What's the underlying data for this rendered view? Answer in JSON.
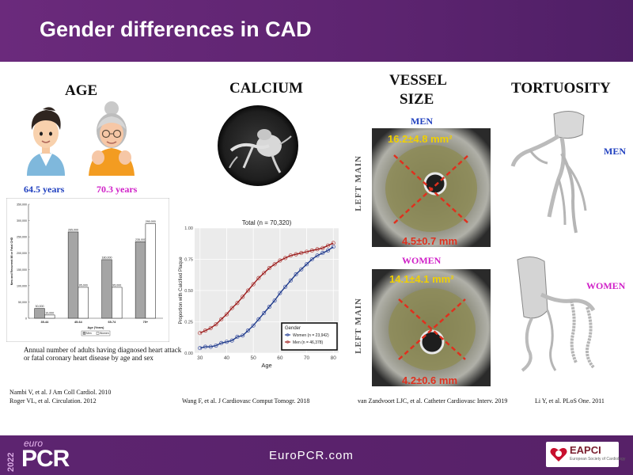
{
  "slide": {
    "title": "Gender differences in CAD",
    "footer_site": "EuroPCR.com",
    "logo": {
      "year": "2022",
      "euro": "euro",
      "pcr": "PCR",
      "society": "EAPCI",
      "society_sub": "European Society of Cardiology"
    }
  },
  "sections": {
    "age": "AGE",
    "calcium": "CALCIUM",
    "vessel_size": [
      "VESSEL",
      "SIZE"
    ],
    "tortuosity": "TORTUOSITY"
  },
  "age": {
    "men_age": "64.5 years",
    "women_age": "70.3 years",
    "caption": "Annual number of adults having diagnosed heart attack or fatal coronary heart disease by age and sex",
    "refs": [
      "Nambi V, et al. J Am Coll Cardiol. 2010",
      "Roger VL, et al. Circulation. 2012"
    ]
  },
  "calcium": {
    "ref": "Wang F, et al. J Cardiovasc Comput Tomogr. 2018"
  },
  "vessel": {
    "men_label": "MEN",
    "women_label": "WOMEN",
    "left_main": "LEFT MAIN",
    "men_area": "16.2±4.8 mm²",
    "men_diam": "4.5±0.7 mm",
    "women_area": "14.1±4.1 mm²",
    "women_diam": "4.2±0.6 mm",
    "ref": "van Zandvoort LJC, et al. Catheter Cardiovasc Interv. 2019"
  },
  "tortuosity": {
    "men_label": "MEN",
    "women_label": "WOMEN",
    "ref": "Li Y, et al. PLoS One. 2011"
  },
  "colors": {
    "header": "#5d2470",
    "men_blue": "#1f3fbf",
    "women_magenta": "#d020c8",
    "measure_yellow": "#f0d000",
    "measure_red": "#e0301e",
    "women_line": "#1e3a8a",
    "men_line": "#9b1b1b"
  },
  "chart_data": [
    {
      "type": "bar",
      "ylabel": "New and Recurrent MI or Fatal CHD",
      "xlabel": "Age (Years)",
      "categories": [
        "35-44",
        "45-64",
        "65-74",
        "75+"
      ],
      "ylim": [
        0,
        350000
      ],
      "yticks": [
        "0",
        "50,000",
        "100,000",
        "150,000",
        "200,000",
        "250,000",
        "300,000",
        "350,000"
      ],
      "series": [
        {
          "name": "Men",
          "values": [
            30000,
            265000,
            180000,
            235000
          ],
          "labels": [
            "30,000",
            "265,000",
            "180,000",
            "235,000"
          ]
        },
        {
          "name": "Women",
          "values": [
            10000,
            95000,
            95000,
            290000
          ],
          "labels": [
            "10,000",
            "95,000",
            "95,000",
            "290,000"
          ]
        }
      ],
      "legend": "bottom-center"
    },
    {
      "type": "scatter",
      "title": "Total (n = 70,320)",
      "xlabel": "Age",
      "ylabel": "Proportion with Calcified Plaque",
      "xlim": [
        28,
        82
      ],
      "ylim": [
        0,
        1
      ],
      "xticks": [
        "30",
        "40",
        "50",
        "60",
        "70",
        "80"
      ],
      "yticks": [
        "0.00",
        "0.25",
        "0.50",
        "0.75",
        "1.00"
      ],
      "legend_title": "Gender",
      "legend": "bottom-right",
      "series": [
        {
          "name": "Women (n = 23,942)",
          "x": [
            30,
            32,
            34,
            36,
            38,
            40,
            42,
            44,
            46,
            48,
            50,
            52,
            54,
            56,
            58,
            60,
            62,
            64,
            66,
            68,
            70,
            72,
            74,
            76,
            78,
            80
          ],
          "y": [
            0.04,
            0.05,
            0.05,
            0.06,
            0.08,
            0.09,
            0.1,
            0.13,
            0.14,
            0.18,
            0.22,
            0.27,
            0.32,
            0.37,
            0.42,
            0.48,
            0.53,
            0.58,
            0.63,
            0.67,
            0.71,
            0.75,
            0.78,
            0.8,
            0.82,
            0.85
          ]
        },
        {
          "name": "Men (n = 46,378)",
          "x": [
            30,
            32,
            34,
            36,
            38,
            40,
            42,
            44,
            46,
            48,
            50,
            52,
            54,
            56,
            58,
            60,
            62,
            64,
            66,
            68,
            70,
            72,
            74,
            76,
            78,
            80
          ],
          "y": [
            0.16,
            0.18,
            0.2,
            0.23,
            0.27,
            0.31,
            0.36,
            0.4,
            0.45,
            0.5,
            0.55,
            0.6,
            0.64,
            0.68,
            0.71,
            0.74,
            0.76,
            0.78,
            0.79,
            0.8,
            0.81,
            0.82,
            0.83,
            0.84,
            0.86,
            0.88
          ]
        }
      ]
    }
  ]
}
